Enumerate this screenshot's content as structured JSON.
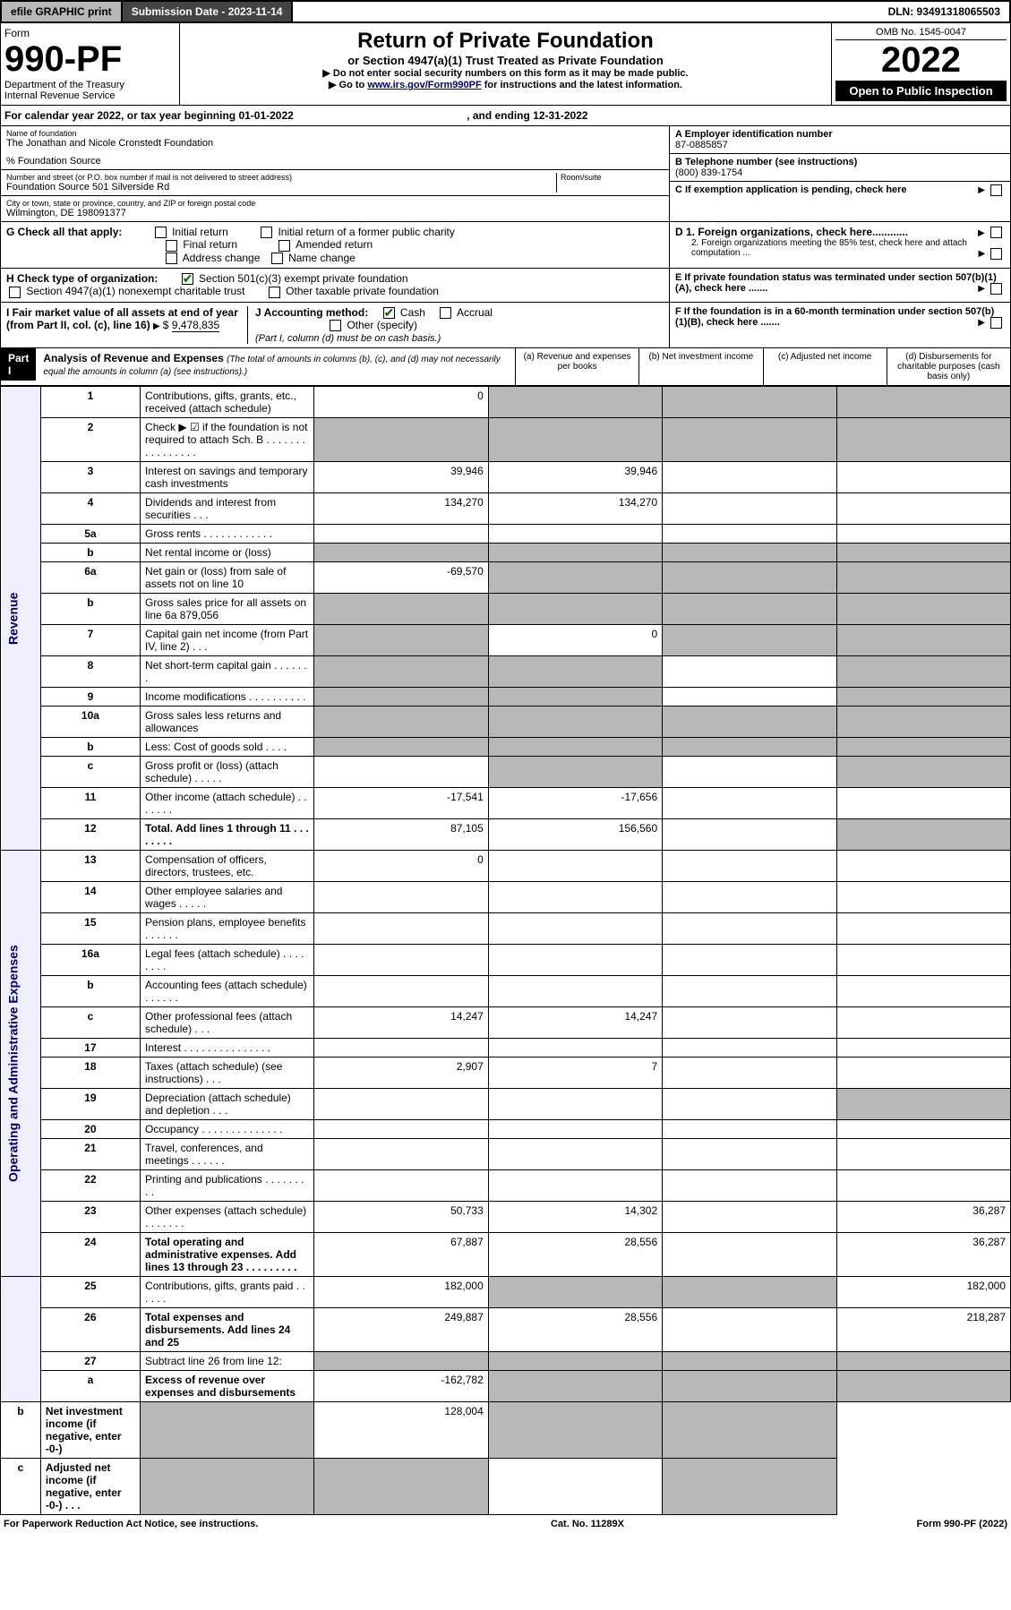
{
  "topbar": {
    "efile": "efile GRAPHIC print",
    "sub_label": "Submission Date - 2023-11-14",
    "dln": "DLN: 93491318065503"
  },
  "header": {
    "form": "Form",
    "form_num": "990-PF",
    "dept": "Department of the Treasury",
    "irs": "Internal Revenue Service",
    "title": "Return of Private Foundation",
    "subtitle": "or Section 4947(a)(1) Trust Treated as Private Foundation",
    "instr1": "▶ Do not enter social security numbers on this form as it may be made public.",
    "instr2_a": "▶ Go to ",
    "instr2_link": "www.irs.gov/Form990PF",
    "instr2_b": " for instructions and the latest information.",
    "omb": "OMB No. 1545-0047",
    "year": "2022",
    "open": "Open to Public Inspection"
  },
  "cal": "For calendar year 2022, or tax year beginning 01-01-2022",
  "cal_end": ", and ending 12-31-2022",
  "entity": {
    "name_lbl": "Name of foundation",
    "name": "The Jonathan and Nicole Cronstedt Foundation",
    "pct": "% Foundation Source",
    "addr_lbl": "Number and street (or P.O. box number if mail is not delivered to street address)",
    "room_lbl": "Room/suite",
    "addr": "Foundation Source 501 Silverside Rd",
    "city_lbl": "City or town, state or province, country, and ZIP or foreign postal code",
    "city": "Wilmington, DE  198091377",
    "a_lbl": "A Employer identification number",
    "a": "87-0885857",
    "b_lbl": "B Telephone number (see instructions)",
    "b": "(800) 839-1754",
    "c_lbl": "C If exemption application is pending, check here",
    "d1": "D 1. Foreign organizations, check here............",
    "d2": "2. Foreign organizations meeting the 85% test, check here and attach computation ...",
    "e": "E  If private foundation status was terminated under section 507(b)(1)(A), check here .......",
    "f": "F  If the foundation is in a 60-month termination under section 507(b)(1)(B), check here ......."
  },
  "g": {
    "lbl": "G Check all that apply:",
    "o1": "Initial return",
    "o2": "Initial return of a former public charity",
    "o3": "Final return",
    "o4": "Amended return",
    "o5": "Address change",
    "o6": "Name change"
  },
  "h": {
    "lbl": "H Check type of organization:",
    "o1": "Section 501(c)(3) exempt private foundation",
    "o2": "Section 4947(a)(1) nonexempt charitable trust",
    "o3": "Other taxable private foundation"
  },
  "i": {
    "lbl": "I Fair market value of all assets at end of year (from Part II, col. (c), line 16)",
    "amt": "9,478,835"
  },
  "j": {
    "lbl": "J Accounting method:",
    "cash": "Cash",
    "accrual": "Accrual",
    "other": "Other (specify)",
    "note": "(Part I, column (d) must be on cash basis.)"
  },
  "part1": {
    "hdr": "Part I",
    "title": "Analysis of Revenue and Expenses",
    "note": "(The total of amounts in columns (b), (c), and (d) may not necessarily equal the amounts in column (a) (see instructions).)",
    "cols": [
      "(a)  Revenue and expenses per books",
      "(b)  Net investment income",
      "(c)  Adjusted net income",
      "(d)  Disbursements for charitable purposes (cash basis only)"
    ]
  },
  "rev_lbl": "Revenue",
  "exp_lbl": "Operating and Administrative Expenses",
  "rows": [
    {
      "n": "1",
      "d": "Contributions, gifts, grants, etc., received (attach schedule)",
      "a": "0",
      "shade": [
        1,
        2,
        3
      ]
    },
    {
      "n": "2",
      "d": "Check ▶ ☑ if the foundation is not required to attach Sch. B  .  .  .  .  .  .  .  .  .  .  .  .  .  .  .  .",
      "shade": [
        0,
        1,
        2,
        3
      ]
    },
    {
      "n": "3",
      "d": "Interest on savings and temporary cash investments",
      "a": "39,946",
      "b": "39,946"
    },
    {
      "n": "4",
      "d": "Dividends and interest from securities   .  .  .",
      "a": "134,270",
      "b": "134,270"
    },
    {
      "n": "5a",
      "d": "Gross rents    .  .  .  .  .  .  .  .  .  .  .  ."
    },
    {
      "n": "b",
      "d": "Net rental income or (loss)",
      "shade": [
        0,
        1,
        2,
        3
      ]
    },
    {
      "n": "6a",
      "d": "Net gain or (loss) from sale of assets not on line 10",
      "a": "-69,570",
      "shade": [
        1,
        2,
        3
      ]
    },
    {
      "n": "b",
      "d": "Gross sales price for all assets on line 6a            879,056",
      "shade": [
        0,
        1,
        2,
        3
      ]
    },
    {
      "n": "7",
      "d": "Capital gain net income (from Part IV, line 2)   .  .  .",
      "b": "0",
      "shade": [
        0,
        2,
        3
      ]
    },
    {
      "n": "8",
      "d": "Net short-term capital gain   .  .  .  .  .  .  .",
      "shade": [
        0,
        1,
        3
      ]
    },
    {
      "n": "9",
      "d": "Income modifications .  .  .  .  .  .  .  .  .  .",
      "shade": [
        0,
        1,
        3
      ]
    },
    {
      "n": "10a",
      "d": "Gross sales less returns and allowances",
      "shade": [
        0,
        1,
        2,
        3
      ]
    },
    {
      "n": "b",
      "d": "Less: Cost of goods sold    .  .  .  .",
      "shade": [
        0,
        1,
        2,
        3
      ]
    },
    {
      "n": "c",
      "d": "Gross profit or (loss) (attach schedule)    .  .  .  .  .",
      "shade": [
        1,
        3
      ]
    },
    {
      "n": "11",
      "d": "Other income (attach schedule)   .  .  .  .  .  .  .",
      "a": "-17,541",
      "b": "-17,656"
    },
    {
      "n": "12",
      "d": "Total. Add lines 1 through 11   .  .  .  .  .  .  .  .",
      "bold": true,
      "a": "87,105",
      "b": "156,560",
      "shade": [
        3
      ]
    },
    {
      "n": "13",
      "d": "Compensation of officers, directors, trustees, etc.",
      "a": "0"
    },
    {
      "n": "14",
      "d": "Other employee salaries and wages   .  .  .  .  ."
    },
    {
      "n": "15",
      "d": "Pension plans, employee benefits .  .  .  .  .  ."
    },
    {
      "n": "16a",
      "d": "Legal fees (attach schedule) .  .  .  .  .  .  .  ."
    },
    {
      "n": "b",
      "d": "Accounting fees (attach schedule) .  .  .  .  .  ."
    },
    {
      "n": "c",
      "d": "Other professional fees (attach schedule)    .  .  .",
      "a": "14,247",
      "b": "14,247"
    },
    {
      "n": "17",
      "d": "Interest .  .  .  .  .  .  .  .  .  .  .  .  .  .  ."
    },
    {
      "n": "18",
      "d": "Taxes (attach schedule) (see instructions)    .  .  .",
      "a": "2,907",
      "b": "7"
    },
    {
      "n": "19",
      "d": "Depreciation (attach schedule) and depletion   .  .  .",
      "shade": [
        3
      ]
    },
    {
      "n": "20",
      "d": "Occupancy .  .  .  .  .  .  .  .  .  .  .  .  .  ."
    },
    {
      "n": "21",
      "d": "Travel, conferences, and meetings .  .  .  .  .  ."
    },
    {
      "n": "22",
      "d": "Printing and publications .  .  .  .  .  .  .  .  ."
    },
    {
      "n": "23",
      "d": "Other expenses (attach schedule) .  .  .  .  .  .  .",
      "a": "50,733",
      "b": "14,302",
      "dd": "36,287"
    },
    {
      "n": "24",
      "d": "Total operating and administrative expenses. Add lines 13 through 23   .  .  .  .  .  .  .  .  .",
      "bold": true,
      "a": "67,887",
      "b": "28,556",
      "dd": "36,287"
    },
    {
      "n": "25",
      "d": "Contributions, gifts, grants paid    .  .  .  .  .  .",
      "a": "182,000",
      "dd": "182,000",
      "shade": [
        1,
        2
      ]
    },
    {
      "n": "26",
      "d": "Total expenses and disbursements. Add lines 24 and 25",
      "bold": true,
      "a": "249,887",
      "b": "28,556",
      "dd": "218,287"
    },
    {
      "n": "27",
      "d": "Subtract line 26 from line 12:",
      "shade": [
        0,
        1,
        2,
        3
      ]
    },
    {
      "n": "a",
      "d": "Excess of revenue over expenses and disbursements",
      "bold": true,
      "a": "-162,782",
      "shade": [
        1,
        2,
        3
      ]
    },
    {
      "n": "b",
      "d": "Net investment income (if negative, enter -0-)",
      "bold": true,
      "b": "128,004",
      "shade": [
        0,
        2,
        3
      ]
    },
    {
      "n": "c",
      "d": "Adjusted net income (if negative, enter -0-)   .  .  .",
      "bold": true,
      "shade": [
        0,
        1,
        3
      ]
    }
  ],
  "footer": {
    "pra": "For Paperwork Reduction Act Notice, see instructions.",
    "cat": "Cat. No. 11289X",
    "form": "Form 990-PF (2022)"
  }
}
